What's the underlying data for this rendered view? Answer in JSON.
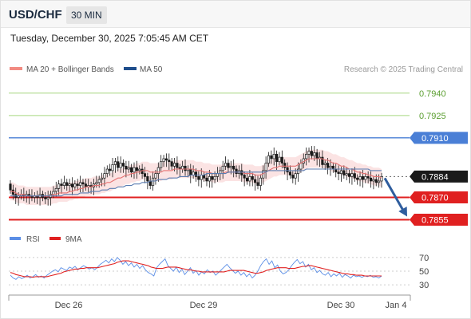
{
  "header": {
    "symbol": "USD/CHF",
    "timeframe": "30 MIN"
  },
  "timestamp": "Tuesday, December 30, 2025 7:05:45 AM CET",
  "legend": {
    "ma20": "MA 20 + Bollinger Bands",
    "ma50": "MA 50",
    "credit": "Research © 2025 Trading Central",
    "rsi": "RSI",
    "ma9": "9MA"
  },
  "colors": {
    "up_candle": "#ffffff",
    "down_candle": "#1a1a1a",
    "ma20": "#e57373",
    "ma50": "#5b7db1",
    "bollinger": "#fadada",
    "resistance_green": "#a6d67f",
    "pivot_blue": "#4a7fd6",
    "support_red": "#e02020",
    "arrow": "#2f5d9e",
    "rsi": "#5b8ee6",
    "ma9": "#e02020"
  },
  "chart_data": [
    {
      "type": "candlestick",
      "title": "USD/CHF",
      "timeframe": "30 MIN",
      "x_ticks": [
        "Dec 26",
        "Dec 29",
        "Dec 30",
        "Jan 4"
      ],
      "ylim": [
        0.7851,
        0.7949
      ],
      "levels": [
        {
          "value": 0.794,
          "label": "0.7940",
          "kind": "resistance"
        },
        {
          "value": 0.7925,
          "label": "0.7925",
          "kind": "resistance"
        },
        {
          "value": 0.791,
          "label": "0.7910",
          "kind": "pivot"
        },
        {
          "value": 0.7884,
          "label": "0.7884",
          "kind": "last"
        },
        {
          "value": 0.787,
          "label": "0.7870",
          "kind": "support"
        },
        {
          "value": 0.7855,
          "label": "0.7855",
          "kind": "support"
        }
      ],
      "last_price": 0.7884,
      "forecast_target": 0.7855,
      "close": [
        0.7875,
        0.7872,
        0.787,
        0.7871,
        0.7872,
        0.7871,
        0.7872,
        0.7871,
        0.787,
        0.7871,
        0.787,
        0.7872,
        0.787,
        0.7869,
        0.787,
        0.7872,
        0.7874,
        0.7876,
        0.7879,
        0.7878,
        0.788,
        0.7878,
        0.7879,
        0.7877,
        0.7879,
        0.7878,
        0.788,
        0.7879,
        0.7877,
        0.7878,
        0.7877,
        0.7879,
        0.788,
        0.7882,
        0.7883,
        0.7886,
        0.7889,
        0.7888,
        0.7892,
        0.7894,
        0.789,
        0.7893,
        0.7891,
        0.7889,
        0.789,
        0.7887,
        0.789,
        0.7888,
        0.7889,
        0.7886,
        0.7884,
        0.7881,
        0.7878,
        0.7883,
        0.7886,
        0.789,
        0.7894,
        0.7896,
        0.7895,
        0.7894,
        0.7891,
        0.7893,
        0.789,
        0.7889,
        0.7891,
        0.7888,
        0.7889,
        0.7885,
        0.7887,
        0.7884,
        0.7882,
        0.7885,
        0.7883,
        0.7881,
        0.7884,
        0.7882,
        0.7884,
        0.7886,
        0.7888,
        0.7891,
        0.7893,
        0.789,
        0.7891,
        0.7889,
        0.7886,
        0.7888,
        0.7885,
        0.7883,
        0.7881,
        0.7884,
        0.7882,
        0.788,
        0.7878,
        0.7883,
        0.7888,
        0.7893,
        0.7898,
        0.7896,
        0.7899,
        0.7894,
        0.7897,
        0.7893,
        0.789,
        0.7887,
        0.7885,
        0.7883,
        0.7886,
        0.7889,
        0.7893,
        0.7896,
        0.7899,
        0.7901,
        0.7898,
        0.79,
        0.7896,
        0.7897,
        0.7892,
        0.7893,
        0.789,
        0.7891,
        0.7889,
        0.7887,
        0.7886,
        0.7888,
        0.7885,
        0.7886,
        0.7884,
        0.7886,
        0.7883,
        0.7882,
        0.7884,
        0.7882,
        0.7884,
        0.7883,
        0.7881,
        0.7882,
        0.788,
        0.7881,
        0.7884
      ],
      "ma20": [
        0.7874,
        0.7874,
        0.7873,
        0.7872,
        0.7872,
        0.7872,
        0.7871,
        0.7871,
        0.7871,
        0.7871,
        0.7871,
        0.7871,
        0.7871,
        0.7871,
        0.7871,
        0.7871,
        0.7872,
        0.7872,
        0.7873,
        0.7873,
        0.7873,
        0.7873,
        0.7874,
        0.7874,
        0.7875,
        0.7875,
        0.7876,
        0.7876,
        0.7877,
        0.7877,
        0.7877,
        0.7878,
        0.7878,
        0.7878,
        0.7879,
        0.7879,
        0.788,
        0.788,
        0.7881,
        0.7882,
        0.7883,
        0.7883,
        0.7884,
        0.7885,
        0.7885,
        0.7886,
        0.7886,
        0.7887,
        0.7887,
        0.7888,
        0.7888,
        0.7888,
        0.7887,
        0.7887,
        0.7887,
        0.7887,
        0.7887,
        0.7888,
        0.7888,
        0.7888,
        0.7888,
        0.7889,
        0.7889,
        0.7889,
        0.7889,
        0.7889,
        0.7889,
        0.7889,
        0.7889,
        0.7888,
        0.7888,
        0.7888,
        0.7887,
        0.7887,
        0.7887,
        0.7886,
        0.7886,
        0.7886,
        0.7886,
        0.7886,
        0.7887,
        0.7887,
        0.7887,
        0.7887,
        0.7887,
        0.7887,
        0.7887,
        0.7886,
        0.7886,
        0.7886,
        0.7886,
        0.7885,
        0.7885,
        0.7885,
        0.7886,
        0.7887,
        0.7888,
        0.7889,
        0.789,
        0.789,
        0.7891,
        0.7891,
        0.7891,
        0.7891,
        0.7891,
        0.7891,
        0.7891,
        0.7892,
        0.7893,
        0.7894,
        0.7895,
        0.7896,
        0.7896,
        0.7896,
        0.7896,
        0.7896,
        0.7896,
        0.7895,
        0.7895,
        0.7894,
        0.7893,
        0.7893,
        0.7892,
        0.7891,
        0.7891,
        0.789,
        0.7889,
        0.7889,
        0.7888,
        0.7887,
        0.7887,
        0.7886,
        0.7886,
        0.7885,
        0.7885,
        0.7884,
        0.7884,
        0.7884,
        0.7883
      ],
      "ma50": [
        0.7871,
        0.7871,
        0.7871,
        0.7871,
        0.7871,
        0.7871,
        0.7871,
        0.7871,
        0.7871,
        0.7871,
        0.7871,
        0.7871,
        0.7871,
        0.7871,
        0.7871,
        0.7871,
        0.7871,
        0.7871,
        0.7871,
        0.7871,
        0.7872,
        0.7872,
        0.7872,
        0.7872,
        0.7872,
        0.7872,
        0.7873,
        0.7873,
        0.7873,
        0.7873,
        0.7874,
        0.7874,
        0.7874,
        0.7874,
        0.7875,
        0.7875,
        0.7875,
        0.7876,
        0.7876,
        0.7876,
        0.7877,
        0.7877,
        0.7877,
        0.7878,
        0.7878,
        0.7878,
        0.7879,
        0.7879,
        0.7879,
        0.788,
        0.788,
        0.788,
        0.7881,
        0.7881,
        0.7881,
        0.7882,
        0.7882,
        0.7882,
        0.7882,
        0.7883,
        0.7883,
        0.7883,
        0.7883,
        0.7884,
        0.7884,
        0.7884,
        0.7884,
        0.7885,
        0.7885,
        0.7885,
        0.7885,
        0.7885,
        0.7885,
        0.7886,
        0.7886,
        0.7886,
        0.7886,
        0.7886,
        0.7886,
        0.7886,
        0.7886,
        0.7887,
        0.7887,
        0.7887,
        0.7887,
        0.7887,
        0.7887,
        0.7887,
        0.7887,
        0.7887,
        0.7887,
        0.7887,
        0.7887,
        0.7887,
        0.7887,
        0.7887,
        0.7888,
        0.7888,
        0.7888,
        0.7888,
        0.7888,
        0.7888,
        0.7888,
        0.7888,
        0.7888,
        0.7888,
        0.7888,
        0.7888,
        0.7888,
        0.7888,
        0.7889,
        0.7889,
        0.7889,
        0.7889,
        0.7889,
        0.7889,
        0.7889,
        0.7889,
        0.7889,
        0.7889,
        0.7889,
        0.7889,
        0.7889,
        0.7889,
        0.7889,
        0.7889,
        0.7889,
        0.7889,
        0.7889,
        0.7889,
        0.7889,
        0.7889,
        0.7889,
        0.7889,
        0.7888,
        0.7888,
        0.7888,
        0.7888,
        0.7888
      ]
    },
    {
      "type": "line",
      "title": "RSI",
      "yticks": [
        30,
        50,
        70
      ],
      "ylim": [
        22,
        78
      ],
      "series": [
        {
          "name": "RSI",
          "values": [
            44,
            40,
            38,
            42,
            39,
            41,
            44,
            40,
            42,
            45,
            41,
            43,
            40,
            44,
            47,
            50,
            52,
            49,
            55,
            53,
            51,
            56,
            54,
            57,
            52,
            55,
            58,
            56,
            53,
            55,
            52,
            56,
            60,
            63,
            66,
            62,
            68,
            64,
            70,
            66,
            60,
            64,
            58,
            62,
            56,
            60,
            54,
            58,
            52,
            48,
            46,
            43,
            55,
            60,
            64,
            68,
            58,
            54,
            50,
            56,
            48,
            53,
            45,
            50,
            55,
            47,
            51,
            44,
            49,
            46,
            52,
            48,
            50,
            44,
            48,
            52,
            56,
            60,
            55,
            51,
            47,
            50,
            44,
            48,
            42,
            46,
            40,
            44,
            50,
            58,
            64,
            68,
            60,
            65,
            55,
            59,
            50,
            46,
            48,
            52,
            58,
            63,
            67,
            61,
            64,
            56,
            60,
            52,
            55,
            48,
            51,
            46,
            44,
            48,
            42,
            46,
            43,
            47,
            41,
            45,
            43,
            40,
            44,
            42,
            43,
            41,
            43,
            42,
            44,
            41,
            42,
            40,
            43
          ]
        },
        {
          "name": "9MA",
          "values": [
            48,
            47,
            45,
            44,
            43,
            42,
            42,
            42,
            41,
            42,
            42,
            42,
            42,
            42,
            43,
            44,
            45,
            46,
            47,
            49,
            50,
            51,
            52,
            53,
            53,
            54,
            54,
            55,
            55,
            55,
            55,
            55,
            56,
            57,
            58,
            59,
            60,
            61,
            63,
            64,
            65,
            65,
            65,
            64,
            63,
            62,
            61,
            60,
            59,
            58,
            56,
            55,
            54,
            54,
            54,
            55,
            56,
            56,
            56,
            56,
            55,
            54,
            53,
            52,
            52,
            51,
            50,
            50,
            49,
            49,
            49,
            49,
            49,
            49,
            49,
            49,
            49,
            50,
            51,
            51,
            51,
            51,
            51,
            51,
            50,
            49,
            48,
            47,
            47,
            48,
            49,
            51,
            52,
            53,
            54,
            55,
            55,
            55,
            55,
            54,
            54,
            54,
            55,
            56,
            57,
            57,
            58,
            58,
            57,
            56,
            55,
            54,
            53,
            52,
            51,
            50,
            49,
            48,
            47,
            46,
            46,
            45,
            45,
            44,
            44,
            44,
            43,
            43,
            43,
            43,
            43,
            43,
            43
          ]
        }
      ]
    }
  ]
}
